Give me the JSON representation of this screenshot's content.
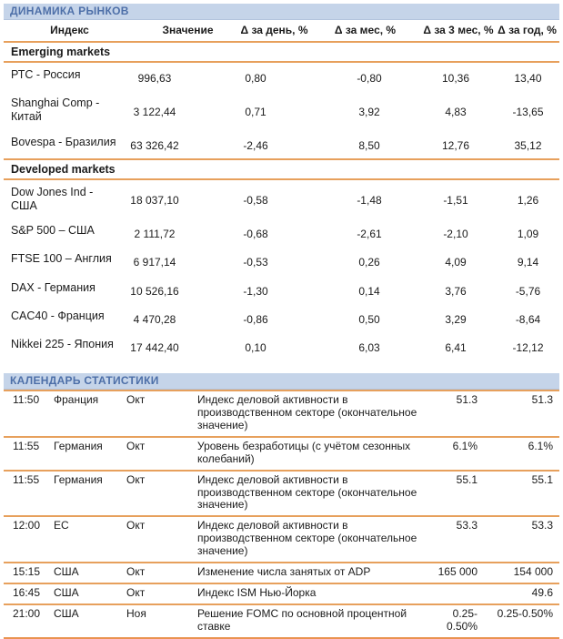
{
  "colors": {
    "accent_orange": "#e7a05c",
    "accent_orange_strong": "#ea9350",
    "title_bar_bg": "#c5d4e9",
    "title_bar_text": "#4d6fa8"
  },
  "markets": {
    "title": "ДИНАМИКА РЫНКОВ",
    "columns": [
      "Индекс",
      "Значение",
      "Δ за день, %",
      "Δ за мес, %",
      "Δ за 3 мес, %",
      "Δ за год, %"
    ],
    "sections": [
      {
        "label": "Emerging markets",
        "rows": [
          {
            "name": "РТС - Россия",
            "value": "996,63",
            "d_day": "0,80",
            "d_month": "-0,80",
            "d_3month": "10,36",
            "d_year": "13,40"
          },
          {
            "name": "Shanghai Comp - Китай",
            "value": "3 122,44",
            "d_day": "0,71",
            "d_month": "3,92",
            "d_3month": "4,83",
            "d_year": "-13,65"
          },
          {
            "name": "Bovespa - Бразилия",
            "value": "63 326,42",
            "d_day": "-2,46",
            "d_month": "8,50",
            "d_3month": "12,76",
            "d_year": "35,12"
          }
        ]
      },
      {
        "label": "Developed markets",
        "rows": [
          {
            "name": "Dow Jones Ind - США",
            "value": "18 037,10",
            "d_day": "-0,58",
            "d_month": "-1,48",
            "d_3month": "-1,51",
            "d_year": "1,26"
          },
          {
            "name": "S&P 500 – США",
            "value": "2 111,72",
            "d_day": "-0,68",
            "d_month": "-2,61",
            "d_3month": "-2,10",
            "d_year": "1,09"
          },
          {
            "name": "FTSE 100 – Англия",
            "value": "6 917,14",
            "d_day": "-0,53",
            "d_month": "0,26",
            "d_3month": "4,09",
            "d_year": "9,14"
          },
          {
            "name": "DAX - Германия",
            "value": "10 526,16",
            "d_day": "-1,30",
            "d_month": "0,14",
            "d_3month": "3,76",
            "d_year": "-5,76"
          },
          {
            "name": "CAC40 - Франция",
            "value": "4 470,28",
            "d_day": "-0,86",
            "d_month": "0,50",
            "d_3month": "3,29",
            "d_year": "-8,64"
          },
          {
            "name": "Nikkei 225 - Япония",
            "value": "17 442,40",
            "d_day": "0,10",
            "d_month": "6,03",
            "d_3month": "6,41",
            "d_year": "-12,12"
          }
        ]
      }
    ]
  },
  "calendar": {
    "title": "КАЛЕНДАРЬ СТАТИСТИКИ",
    "rows": [
      {
        "time": "11:50",
        "region": "Франция",
        "period": "Окт",
        "event": "Индекс деловой активности в производственном секторе (окончательное значение)",
        "forecast": "51.3",
        "fact": "51.3"
      },
      {
        "time": "11:55",
        "region": "Германия",
        "period": "Окт",
        "event": "Уровень безработицы (с учётом сезонных колебаний)",
        "forecast": "6.1%",
        "fact": "6.1%"
      },
      {
        "time": "11:55",
        "region": "Германия",
        "period": "Окт",
        "event": "Индекс деловой активности в производственном секторе (окончательное значение)",
        "forecast": "55.1",
        "fact": "55.1"
      },
      {
        "time": "12:00",
        "region": "ЕС",
        "period": "Окт",
        "event": "Индекс деловой активности в производственном секторе (окончательное значение)",
        "forecast": "53.3",
        "fact": "53.3"
      },
      {
        "time": "15:15",
        "region": "США",
        "period": "Окт",
        "event": "Изменение числа занятых от ADP",
        "forecast": "165 000",
        "fact": "154 000"
      },
      {
        "time": "16:45",
        "region": "США",
        "period": "Окт",
        "event": "Индекс ISM Нью-Йорка",
        "forecast": "",
        "fact": "49.6"
      },
      {
        "time": "21:00",
        "region": "США",
        "period": "Ноя",
        "event": "Решение FOMC по основной процентной ставке",
        "forecast": "0.25-0.50%",
        "fact": "0.25-0.50%"
      }
    ]
  }
}
